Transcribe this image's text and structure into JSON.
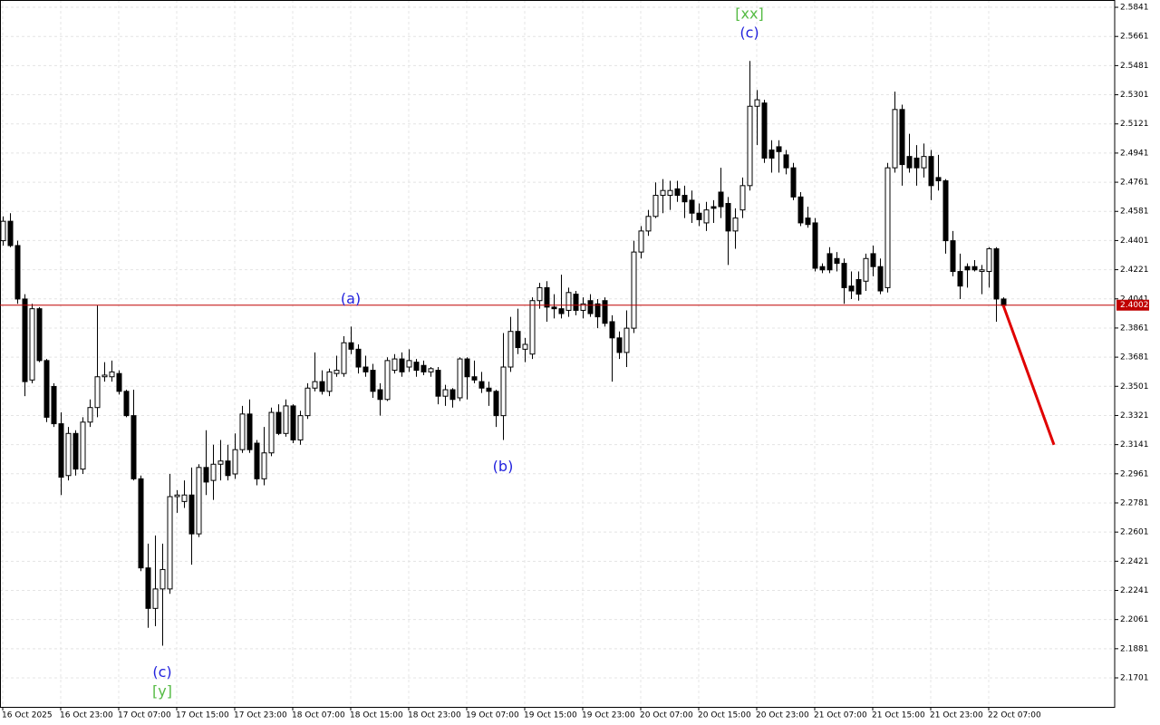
{
  "chart_data": {
    "type": "candlestick",
    "categories": [
      "16 Oct 2025",
      null,
      null,
      null,
      null,
      null,
      null,
      null,
      "16 Oct 23:00",
      null,
      null,
      null,
      null,
      null,
      null,
      null,
      "17 Oct 07:00",
      null,
      null,
      null,
      null,
      null,
      null,
      null,
      "17 Oct 15:00",
      null,
      null,
      null,
      null,
      null,
      null,
      null,
      "17 Oct 23:00",
      null,
      null,
      null,
      null,
      null,
      null,
      null,
      "18 Oct 07:00",
      null,
      null,
      null,
      null,
      null,
      null,
      null,
      "18 Oct 15:00",
      null,
      null,
      null,
      null,
      null,
      null,
      null,
      "18 Oct 23:00",
      null,
      null,
      null,
      null,
      null,
      null,
      null,
      "19 Oct 07:00",
      null,
      null,
      null,
      null,
      null,
      null,
      null,
      "19 Oct 15:00",
      null,
      null,
      null,
      null,
      null,
      null,
      null,
      "19 Oct 23:00",
      null,
      null,
      null,
      null,
      null,
      null,
      null,
      "20 Oct 07:00",
      null,
      null,
      null,
      null,
      null,
      null,
      null,
      "20 Oct 15:00",
      null,
      null,
      null,
      null,
      null,
      null,
      null,
      "20 Oct 23:00",
      null,
      null,
      null,
      null,
      null,
      null,
      null,
      "21 Oct 07:00",
      null,
      null,
      null,
      null,
      null,
      null,
      null,
      "21 Oct 15:00",
      null,
      null,
      null,
      null,
      null,
      null,
      null,
      "21 Oct 23:00",
      null,
      null,
      null,
      null,
      null,
      null,
      null,
      "22 Oct 07:00",
      null,
      null
    ],
    "open": [
      2.44,
      2.452,
      2.437,
      2.404,
      2.354,
      2.398,
      2.366,
      2.35,
      2.327,
      2.295,
      2.321,
      2.299,
      2.328,
      2.337,
      2.356,
      2.356,
      2.358,
      2.347,
      2.332,
      2.293,
      2.238,
      2.213,
      2.225,
      2.225,
      2.282,
      2.279,
      2.283,
      2.259,
      2.3,
      2.292,
      2.302,
      2.304,
      2.296,
      2.311,
      2.333,
      2.315,
      2.293,
      2.309,
      2.334,
      2.321,
      2.338,
      2.317,
      2.332,
      2.349,
      2.353,
      2.347,
      2.358,
      2.358,
      2.377,
      2.373,
      2.362,
      2.36,
      2.348,
      2.342,
      2.36,
      2.367,
      2.362,
      2.365,
      2.363,
      2.359,
      2.36,
      2.344,
      2.348,
      2.343,
      2.367,
      2.356,
      2.353,
      2.349,
      2.347,
      2.332,
      2.362,
      2.384,
      2.373,
      2.37,
      2.403,
      2.411,
      2.399,
      2.398,
      2.397,
      2.407,
      2.397,
      2.403,
      2.401,
      2.403,
      2.39,
      2.38,
      2.371,
      2.386,
      2.433,
      2.446,
      2.455,
      2.468,
      2.468,
      2.472,
      2.468,
      2.465,
      2.457,
      2.451,
      2.461,
      2.47,
      2.463,
      2.446,
      2.459,
      2.474,
      2.523,
      2.525,
      2.496,
      2.498,
      2.493,
      2.485,
      2.467,
      2.454,
      2.451,
      2.424,
      2.432,
      2.429,
      2.426,
      2.412,
      2.416,
      2.415,
      2.432,
      2.424,
      2.411,
      2.485,
      2.521,
      2.492,
      2.491,
      2.485,
      2.492,
      2.479,
      2.477,
      2.44,
      2.421,
      2.424,
      2.424,
      2.421,
      2.421,
      2.435,
      2.404
    ],
    "high": [
      2.455,
      2.457,
      2.44,
      2.407,
      2.401,
      2.399,
      2.367,
      2.352,
      2.334,
      2.325,
      2.323,
      2.331,
      2.342,
      2.4,
      2.365,
      2.366,
      2.36,
      2.348,
      2.348,
      2.295,
      2.253,
      2.258,
      2.253,
      2.296,
      2.286,
      2.292,
      2.3,
      2.302,
      2.323,
      2.314,
      2.317,
      2.314,
      2.321,
      2.338,
      2.342,
      2.317,
      2.325,
      2.337,
      2.339,
      2.342,
      2.339,
      2.335,
      2.352,
      2.371,
      2.36,
      2.361,
      2.369,
      2.381,
      2.387,
      2.376,
      2.369,
      2.364,
      2.352,
      2.368,
      2.37,
      2.371,
      2.373,
      2.367,
      2.366,
      2.362,
      2.362,
      2.351,
      2.349,
      2.368,
      2.368,
      2.366,
      2.359,
      2.353,
      2.348,
      2.383,
      2.393,
      2.398,
      2.38,
      2.405,
      2.414,
      2.415,
      2.407,
      2.419,
      2.411,
      2.409,
      2.405,
      2.407,
      2.404,
      2.405,
      2.394,
      2.384,
      2.397,
      2.44,
      2.449,
      2.459,
      2.476,
      2.478,
      2.477,
      2.477,
      2.474,
      2.471,
      2.463,
      2.464,
      2.465,
      2.485,
      2.467,
      2.46,
      2.479,
      2.551,
      2.533,
      2.527,
      2.502,
      2.502,
      2.496,
      2.488,
      2.47,
      2.461,
      2.454,
      2.426,
      2.436,
      2.433,
      2.429,
      2.421,
      2.421,
      2.432,
      2.437,
      2.429,
      2.488,
      2.532,
      2.524,
      2.506,
      2.499,
      2.5,
      2.496,
      2.493,
      2.478,
      2.446,
      2.432,
      2.426,
      2.428,
      2.425,
      2.436,
      2.436,
      2.405
    ],
    "low": [
      2.437,
      2.436,
      2.401,
      2.344,
      2.352,
      2.365,
      2.328,
      2.325,
      2.283,
      2.292,
      2.295,
      2.296,
      2.325,
      2.331,
      2.353,
      2.353,
      2.345,
      2.331,
      2.292,
      2.236,
      2.201,
      2.202,
      2.19,
      2.222,
      2.272,
      2.275,
      2.24,
      2.257,
      2.283,
      2.28,
      2.292,
      2.292,
      2.293,
      2.309,
      2.309,
      2.289,
      2.289,
      2.307,
      2.32,
      2.319,
      2.315,
      2.314,
      2.33,
      2.347,
      2.345,
      2.344,
      2.356,
      2.356,
      2.37,
      2.358,
      2.356,
      2.343,
      2.332,
      2.341,
      2.358,
      2.356,
      2.359,
      2.356,
      2.357,
      2.356,
      2.339,
      2.338,
      2.337,
      2.341,
      2.342,
      2.352,
      2.346,
      2.338,
      2.325,
      2.317,
      2.359,
      2.37,
      2.365,
      2.367,
      2.398,
      2.39,
      2.392,
      2.392,
      2.393,
      2.394,
      2.392,
      2.393,
      2.386,
      2.387,
      2.353,
      2.367,
      2.362,
      2.383,
      2.429,
      2.443,
      2.454,
      2.457,
      2.459,
      2.464,
      2.454,
      2.451,
      2.449,
      2.446,
      2.451,
      2.454,
      2.425,
      2.435,
      2.454,
      2.471,
      2.499,
      2.488,
      2.482,
      2.482,
      2.481,
      2.465,
      2.449,
      2.448,
      2.421,
      2.42,
      2.42,
      2.421,
      2.401,
      2.404,
      2.403,
      2.409,
      2.418,
      2.407,
      2.408,
      2.482,
      2.474,
      2.482,
      2.474,
      2.479,
      2.465,
      2.471,
      2.432,
      2.418,
      2.404,
      2.411,
      2.421,
      2.407,
      2.411,
      2.39,
      2.399
    ],
    "close": [
      2.452,
      2.437,
      2.404,
      2.353,
      2.398,
      2.366,
      2.331,
      2.327,
      2.294,
      2.321,
      2.299,
      2.328,
      2.337,
      2.356,
      2.357,
      2.359,
      2.347,
      2.332,
      2.293,
      2.238,
      2.213,
      2.225,
      2.237,
      2.282,
      2.283,
      2.283,
      2.259,
      2.3,
      2.291,
      2.302,
      2.304,
      2.295,
      2.311,
      2.333,
      2.311,
      2.293,
      2.309,
      2.334,
      2.321,
      2.338,
      2.317,
      2.332,
      2.349,
      2.353,
      2.347,
      2.359,
      2.36,
      2.377,
      2.373,
      2.362,
      2.359,
      2.347,
      2.342,
      2.366,
      2.367,
      2.359,
      2.366,
      2.36,
      2.359,
      2.361,
      2.344,
      2.348,
      2.342,
      2.367,
      2.356,
      2.354,
      2.349,
      2.347,
      2.332,
      2.362,
      2.384,
      2.374,
      2.376,
      2.403,
      2.411,
      2.399,
      2.398,
      2.395,
      2.408,
      2.397,
      2.401,
      2.395,
      2.393,
      2.389,
      2.38,
      2.371,
      2.386,
      2.433,
      2.446,
      2.455,
      2.468,
      2.471,
      2.471,
      2.468,
      2.464,
      2.457,
      2.453,
      2.459,
      2.46,
      2.461,
      2.446,
      2.454,
      2.474,
      2.523,
      2.527,
      2.491,
      2.491,
      2.495,
      2.485,
      2.467,
      2.451,
      2.45,
      2.423,
      2.422,
      2.422,
      2.426,
      2.411,
      2.409,
      2.407,
      2.429,
      2.424,
      2.409,
      2.485,
      2.521,
      2.487,
      2.485,
      2.485,
      2.492,
      2.474,
      2.477,
      2.44,
      2.421,
      2.412,
      2.422,
      2.422,
      2.422,
      2.435,
      2.404,
      2.4
    ],
    "up_color": "#ffffff",
    "down_color": "#000000",
    "ylim": [
      2.1522,
      2.5886
    ],
    "yticks": [
      2.5841,
      2.5661,
      2.5481,
      2.5301,
      2.5121,
      2.4941,
      2.4761,
      2.4581,
      2.4401,
      2.4221,
      2.4041,
      2.3861,
      2.3681,
      2.3501,
      2.3321,
      2.3141,
      2.2961,
      2.2781,
      2.2601,
      2.2421,
      2.2241,
      2.2061,
      2.1881,
      2.1701
    ],
    "grid": true,
    "current_price": 2.4002,
    "current_price_color": "#c00000",
    "forecast": {
      "x": [
        138,
        145
      ],
      "values": [
        2.4002,
        2.314
      ],
      "color": "#e00000"
    },
    "annotations": [
      {
        "text": "(c)",
        "bar": 22,
        "position": "below",
        "color": "#2222dd"
      },
      {
        "text": "[y]",
        "bar": 22,
        "position": "below",
        "color": "#55bb44"
      },
      {
        "text": "(a)",
        "bar": 48,
        "position": "above",
        "color": "#2222dd"
      },
      {
        "text": "(b)",
        "bar": 69,
        "position": "below",
        "color": "#2222dd"
      },
      {
        "text": "(c)",
        "bar": 103,
        "position": "above",
        "color": "#2222dd"
      },
      {
        "text": "[xx]",
        "bar": 103,
        "position": "above",
        "color": "#55bb44"
      }
    ]
  }
}
